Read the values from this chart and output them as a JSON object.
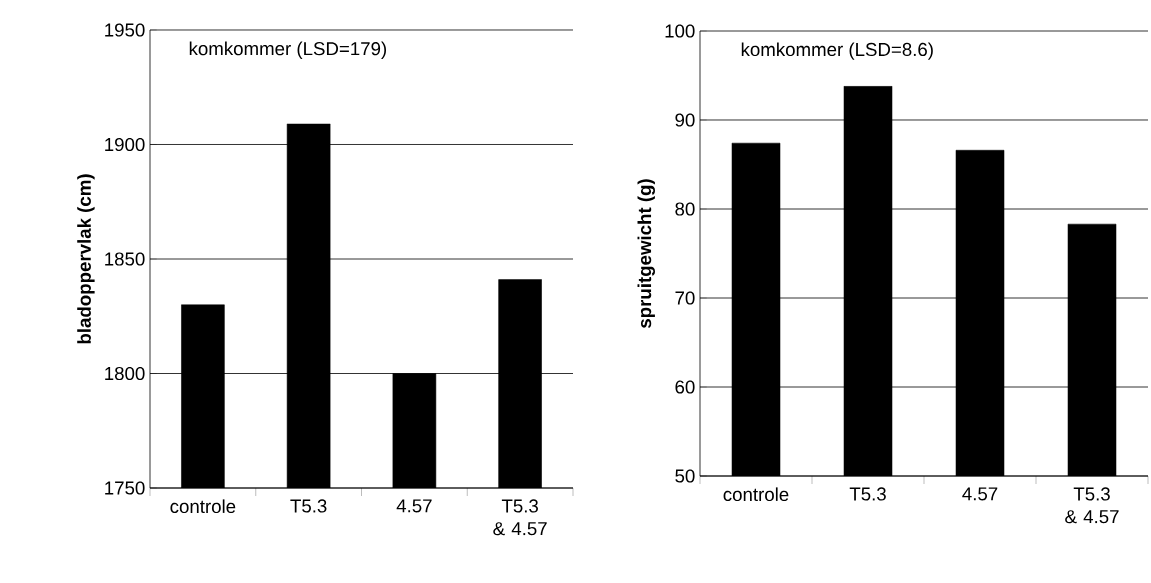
{
  "chart_data": [
    {
      "type": "bar",
      "ylabel": "bladoppervlak (cm)",
      "annotations": [
        "komkommer (LSD=179)"
      ],
      "categories": [
        "controle",
        "T5.3",
        "4.57",
        "T5.3 & 4.57"
      ],
      "values": [
        1830,
        1909,
        1800,
        1841
      ],
      "color": "#000000",
      "ylim": [
        1750,
        1950
      ],
      "yticks": [
        1750,
        1800,
        1850,
        1900,
        1950
      ],
      "grid": "y"
    },
    {
      "type": "bar",
      "ylabel": "spruitgewicht (g)",
      "annotations": [
        "komkommer (LSD=8.6)"
      ],
      "categories": [
        "controle",
        "T5.3",
        "4.57",
        "T5.3 & 4.57"
      ],
      "values": [
        87.4,
        93.8,
        86.6,
        78.3
      ],
      "color": "#000000",
      "ylim": [
        50,
        100
      ],
      "yticks": [
        50,
        60,
        70,
        80,
        90,
        100
      ],
      "grid": "y"
    }
  ]
}
